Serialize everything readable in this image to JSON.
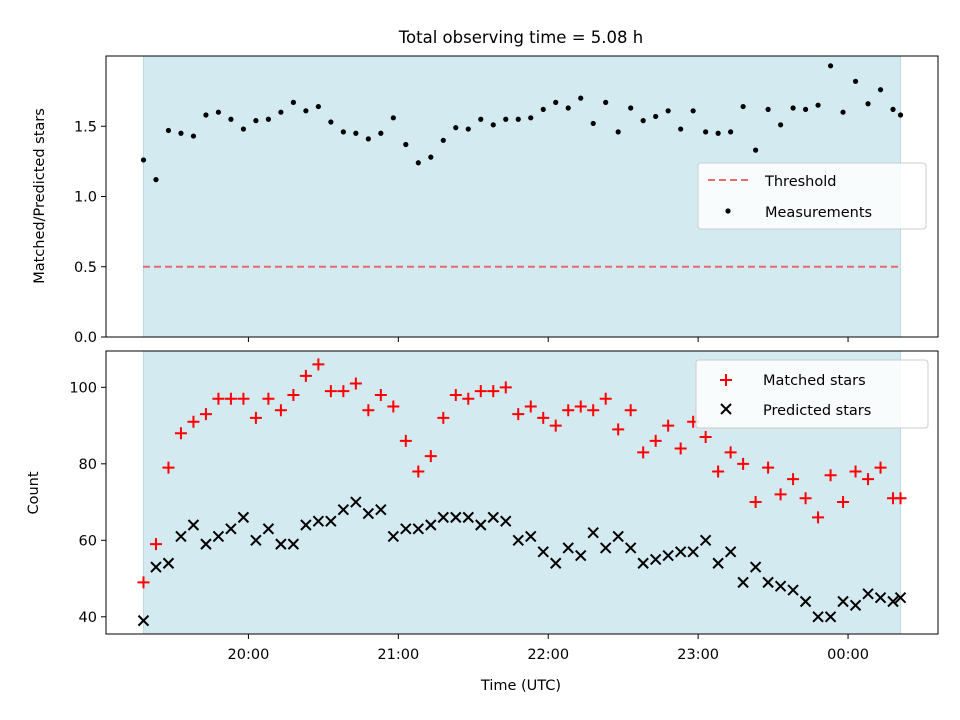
{
  "title": "Total observing time = 5.08 h",
  "colors": {
    "span": "#d3eaf0",
    "threshold": "#e86b6b",
    "measurement": "#000000",
    "matched": "#ff0000",
    "predicted": "#000000"
  },
  "chart_data": [
    {
      "type": "scatter",
      "title": "Total observing time = 5.08 h",
      "ylabel": "Matched/Predicted stars",
      "xlabel": "",
      "ylim": [
        0,
        2.0
      ],
      "xlim": [
        "19:03",
        "00:36"
      ],
      "grid": false,
      "legend_position": "center-right",
      "yticks": [
        "0.0",
        "0.5",
        "1.0",
        "1.5"
      ],
      "shaded_span": [
        "19:18",
        "00:21"
      ],
      "threshold": {
        "name": "Threshold",
        "value": 0.5,
        "style": "dashed"
      },
      "series": [
        {
          "name": "Measurements",
          "marker": "dot",
          "x": [
            "19:18",
            "19:23",
            "19:28",
            "19:33",
            "19:38",
            "19:43",
            "19:48",
            "19:53",
            "19:58",
            "20:03",
            "20:08",
            "20:13",
            "20:18",
            "20:23",
            "20:28",
            "20:33",
            "20:38",
            "20:43",
            "20:48",
            "20:53",
            "20:58",
            "21:03",
            "21:08",
            "21:13",
            "21:18",
            "21:23",
            "21:28",
            "21:33",
            "21:38",
            "21:43",
            "21:48",
            "21:53",
            "21:58",
            "22:03",
            "22:08",
            "22:13",
            "22:18",
            "22:23",
            "22:28",
            "22:33",
            "22:38",
            "22:43",
            "22:48",
            "22:53",
            "22:58",
            "23:03",
            "23:08",
            "23:13",
            "23:18",
            "23:23",
            "23:28",
            "23:33",
            "23:38",
            "23:43",
            "23:48",
            "23:53",
            "23:58",
            "00:03",
            "00:08",
            "00:13",
            "00:18",
            "00:21"
          ],
          "y": [
            1.26,
            1.12,
            1.47,
            1.45,
            1.43,
            1.58,
            1.6,
            1.55,
            1.48,
            1.54,
            1.55,
            1.6,
            1.67,
            1.61,
            1.64,
            1.53,
            1.46,
            1.45,
            1.41,
            1.45,
            1.56,
            1.37,
            1.24,
            1.28,
            1.4,
            1.49,
            1.48,
            1.55,
            1.51,
            1.55,
            1.55,
            1.56,
            1.62,
            1.67,
            1.63,
            1.7,
            1.52,
            1.67,
            1.46,
            1.63,
            1.54,
            1.57,
            1.61,
            1.48,
            1.61,
            1.46,
            1.45,
            1.46,
            1.64,
            1.33,
            1.62,
            1.51,
            1.63,
            1.62,
            1.65,
            1.93,
            1.6,
            1.82,
            1.66,
            1.76,
            1.62,
            1.58
          ]
        }
      ]
    },
    {
      "type": "scatter",
      "title": "",
      "ylabel": "Count",
      "xlabel": "Time (UTC)",
      "ylim": [
        35.5,
        109.5
      ],
      "xlim": [
        "19:03",
        "00:36"
      ],
      "grid": false,
      "legend_position": "top-right",
      "xticks": [
        "20:00",
        "21:00",
        "22:00",
        "23:00",
        "00:00"
      ],
      "yticks": [
        "40",
        "60",
        "80",
        "100"
      ],
      "shaded_span": [
        "19:18",
        "00:21"
      ],
      "series": [
        {
          "name": "Matched stars",
          "marker": "plus",
          "x": [
            "19:18",
            "19:23",
            "19:28",
            "19:33",
            "19:38",
            "19:43",
            "19:48",
            "19:53",
            "19:58",
            "20:03",
            "20:08",
            "20:13",
            "20:18",
            "20:23",
            "20:28",
            "20:33",
            "20:38",
            "20:43",
            "20:48",
            "20:53",
            "20:58",
            "21:03",
            "21:08",
            "21:13",
            "21:18",
            "21:23",
            "21:28",
            "21:33",
            "21:38",
            "21:43",
            "21:48",
            "21:53",
            "21:58",
            "22:03",
            "22:08",
            "22:13",
            "22:18",
            "22:23",
            "22:28",
            "22:33",
            "22:38",
            "22:43",
            "22:48",
            "22:53",
            "22:58",
            "23:03",
            "23:08",
            "23:13",
            "23:18",
            "23:23",
            "23:28",
            "23:33",
            "23:38",
            "23:43",
            "23:48",
            "23:53",
            "23:58",
            "00:03",
            "00:08",
            "00:13",
            "00:18",
            "00:21"
          ],
          "y": [
            49,
            59,
            79,
            88,
            91,
            93,
            97,
            97,
            97,
            92,
            97,
            94,
            98,
            103,
            106,
            99,
            99,
            101,
            94,
            98,
            95,
            86,
            78,
            82,
            92,
            98,
            97,
            99,
            99,
            100,
            93,
            95,
            92,
            90,
            94,
            95,
            94,
            97,
            89,
            94,
            83,
            86,
            90,
            84,
            91,
            87,
            78,
            83,
            80,
            70,
            79,
            72,
            76,
            71,
            66,
            77,
            70,
            78,
            76,
            79,
            71,
            71
          ]
        },
        {
          "name": "Predicted stars",
          "marker": "x",
          "x": [
            "19:18",
            "19:23",
            "19:28",
            "19:33",
            "19:38",
            "19:43",
            "19:48",
            "19:53",
            "19:58",
            "20:03",
            "20:08",
            "20:13",
            "20:18",
            "20:23",
            "20:28",
            "20:33",
            "20:38",
            "20:43",
            "20:48",
            "20:53",
            "20:58",
            "21:03",
            "21:08",
            "21:13",
            "21:18",
            "21:23",
            "21:28",
            "21:33",
            "21:38",
            "21:43",
            "21:48",
            "21:53",
            "21:58",
            "22:03",
            "22:08",
            "22:13",
            "22:18",
            "22:23",
            "22:28",
            "22:33",
            "22:38",
            "22:43",
            "22:48",
            "22:53",
            "22:58",
            "23:03",
            "23:08",
            "23:13",
            "23:18",
            "23:23",
            "23:28",
            "23:33",
            "23:38",
            "23:43",
            "23:48",
            "23:53",
            "23:58",
            "00:03",
            "00:08",
            "00:13",
            "00:18",
            "00:21"
          ],
          "y": [
            39,
            53,
            54,
            61,
            64,
            59,
            61,
            63,
            66,
            60,
            63,
            59,
            59,
            64,
            65,
            65,
            68,
            70,
            67,
            68,
            61,
            63,
            63,
            64,
            66,
            66,
            66,
            64,
            66,
            65,
            60,
            61,
            57,
            54,
            58,
            56,
            62,
            58,
            61,
            58,
            54,
            55,
            56,
            57,
            57,
            60,
            54,
            57,
            49,
            53,
            49,
            48,
            47,
            44,
            40,
            40,
            44,
            43,
            46,
            45,
            44,
            45
          ]
        }
      ]
    }
  ]
}
